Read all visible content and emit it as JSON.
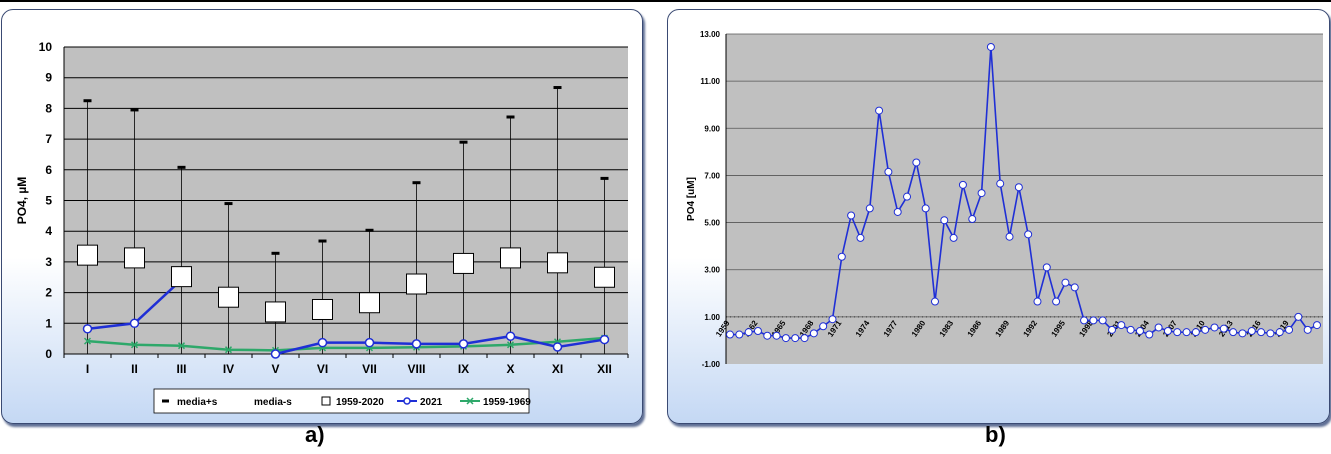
{
  "captions": {
    "a": "a)",
    "b": "b)"
  },
  "colors": {
    "plot_bg": "#c0c0c0",
    "grid": "#000000",
    "blue": "#1f2fd6",
    "green": "#2ea86a",
    "panel_border": "#3a4a73"
  },
  "chart_data": [
    {
      "type": "line",
      "ylabel": "PO4, µM",
      "xlabel": "",
      "ylim": [
        0,
        10
      ],
      "yticks": [
        "0",
        "1",
        "2",
        "3",
        "4",
        "5",
        "6",
        "7",
        "8",
        "9",
        "10"
      ],
      "categories": [
        "I",
        "II",
        "III",
        "IV",
        "V",
        "VI",
        "VII",
        "VIII",
        "IX",
        "X",
        "XI",
        "XII"
      ],
      "grid": "horizontal",
      "legend_position": "bottom",
      "series": [
        {
          "name": "media+s",
          "marker": "dash",
          "values": [
            8.25,
            7.95,
            6.08,
            4.9,
            3.28,
            3.68,
            4.03,
            5.58,
            6.9,
            7.72,
            8.68,
            5.72
          ]
        },
        {
          "name": "media-s",
          "marker": "none",
          "values": [
            0,
            0,
            0,
            0,
            0,
            0,
            0,
            0,
            0,
            0,
            0,
            0
          ]
        },
        {
          "name": "1959-2020",
          "marker": "square",
          "values": [
            3.22,
            3.13,
            2.52,
            1.85,
            1.37,
            1.45,
            1.67,
            2.28,
            2.95,
            3.13,
            2.97,
            2.5
          ]
        },
        {
          "name": "2021",
          "marker": "circle",
          "values": [
            0.82,
            1.0,
            2.42,
            null,
            0.0,
            0.37,
            0.37,
            0.33,
            0.33,
            0.58,
            0.23,
            0.47
          ]
        },
        {
          "name": "1959-1969",
          "marker": "x",
          "values": [
            0.42,
            0.3,
            0.27,
            0.14,
            0.12,
            0.2,
            0.2,
            0.22,
            0.25,
            0.3,
            0.4,
            0.52
          ]
        }
      ]
    },
    {
      "type": "line",
      "ylabel": "PO4  [uM]",
      "xlabel": "",
      "ylim": [
        -1,
        13
      ],
      "yticks": [
        "-1.00",
        "1.00",
        "3.00",
        "5.00",
        "7.00",
        "9.00",
        "11.00",
        "13.00"
      ],
      "xtick_labels": [
        "1959",
        "1962",
        "1965",
        "1968",
        "1971",
        "1974",
        "1977",
        "1980",
        "1983",
        "1986",
        "1989",
        "1992",
        "1995",
        "1998",
        "2001",
        "2004",
        "2007",
        "2010",
        "2013",
        "2016",
        "2019"
      ],
      "grid": "horizontal",
      "x_start": 1959,
      "series": [
        {
          "values": [
            0.25,
            0.25,
            0.35,
            0.4,
            0.2,
            0.2,
            0.1,
            0.1,
            0.1,
            0.3,
            0.6,
            0.9,
            3.55,
            5.3,
            4.35,
            5.6,
            9.75,
            7.15,
            5.45,
            6.1,
            7.55,
            5.6,
            1.65,
            5.1,
            4.35,
            6.6,
            5.15,
            6.25,
            12.45,
            6.65,
            4.4,
            6.5,
            4.5,
            1.65,
            3.1,
            1.65,
            2.45,
            2.25,
            0.85,
            0.85,
            0.85,
            0.45,
            0.65,
            0.45,
            0.4,
            0.25,
            0.55,
            0.4,
            0.35,
            0.35,
            0.35,
            0.45,
            0.55,
            0.5,
            0.35,
            0.3,
            0.4,
            0.35,
            0.3,
            0.35,
            0.45,
            1.0,
            0.45,
            0.65
          ]
        }
      ]
    }
  ]
}
